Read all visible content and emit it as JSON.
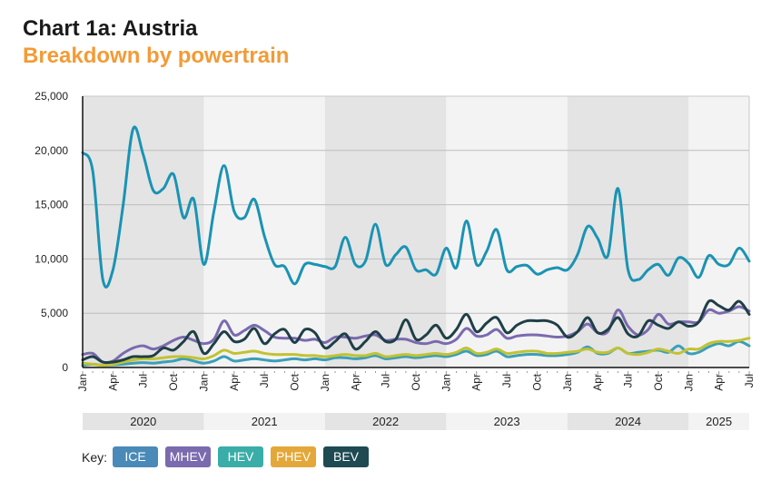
{
  "title": "Chart 1a: Austria",
  "subtitle": "Breakdown by powertrain",
  "key_label": "Key:",
  "colors": {
    "subtitle": "#f39b36",
    "band_dark": "#e4e4e4",
    "band_light": "#f3f3f3"
  },
  "chart_data": {
    "type": "line",
    "x_start": "2020-01",
    "x_end": "2025-07",
    "frequency": "monthly",
    "month_tick_labels": [
      "Jan",
      "Apr",
      "Jul",
      "Oct",
      "Jan",
      "Apr",
      "Jul",
      "Oct",
      "Jan",
      "Apr",
      "Jul",
      "Oct",
      "Jan",
      "Apr",
      "Jul",
      "Oct",
      "Jan",
      "Apr",
      "Jul",
      "Oct",
      "Jan",
      "Apr",
      "Jul"
    ],
    "year_labels": [
      "2020",
      "2021",
      "2022",
      "2023",
      "2024",
      "2025"
    ],
    "y_ticks": [
      "0",
      "5,000",
      "10,000",
      "15,000",
      "20,000",
      "25,000"
    ],
    "ylim": [
      0,
      25000
    ],
    "grid": true,
    "legend_placement": "bottom-left",
    "series": [
      {
        "name": "ICE",
        "color": "#4a8ab8",
        "line_color": "#1a93b3",
        "values": [
          19800,
          18100,
          8100,
          9000,
          14900,
          22000,
          19600,
          16300,
          16500,
          17800,
          13800,
          15500,
          9500,
          14400,
          18600,
          14400,
          13800,
          15500,
          12100,
          9500,
          9300,
          7700,
          9500,
          9500,
          9300,
          9300,
          12000,
          9500,
          9800,
          13200,
          9500,
          10400,
          11100,
          9000,
          9000,
          8600,
          11000,
          9200,
          13500,
          9500,
          10700,
          12700,
          9000,
          9300,
          9400,
          8600,
          9000,
          9200,
          9000,
          10400,
          13000,
          11900,
          10300,
          16500,
          9000,
          8100,
          9000,
          9500,
          8500,
          10100,
          9600,
          8300,
          10300,
          9500,
          9500,
          11000,
          9800
        ]
      },
      {
        "name": "MHEV",
        "color": "#7a6aae",
        "line_color": "#7a6aae",
        "values": [
          1200,
          1300,
          500,
          600,
          1300,
          1800,
          2000,
          1700,
          2000,
          2500,
          2800,
          2500,
          2200,
          2600,
          4300,
          3000,
          3400,
          3900,
          3400,
          2800,
          2700,
          2700,
          2500,
          2600,
          2300,
          2800,
          2800,
          2700,
          2900,
          3000,
          2500,
          2600,
          2600,
          2300,
          2200,
          2400,
          2200,
          2600,
          3600,
          2900,
          3000,
          3500,
          2700,
          2900,
          3000,
          3000,
          2900,
          2800,
          2900,
          3300,
          4000,
          3200,
          3300,
          5300,
          3800,
          3000,
          3500,
          4900,
          4000,
          4200,
          4200,
          4200,
          5300,
          5000,
          5200,
          5600,
          5200
        ]
      },
      {
        "name": "HEV",
        "color": "#3aada8",
        "line_color": "#3a9fb8",
        "values": [
          200,
          300,
          200,
          250,
          300,
          400,
          450,
          400,
          500,
          600,
          800,
          600,
          400,
          600,
          1000,
          600,
          700,
          800,
          700,
          600,
          700,
          800,
          700,
          800,
          700,
          900,
          900,
          800,
          900,
          1100,
          800,
          900,
          1000,
          900,
          1000,
          1100,
          1000,
          1200,
          1500,
          1100,
          1200,
          1500,
          1000,
          1100,
          1200,
          1200,
          1100,
          1100,
          1200,
          1400,
          1900,
          1300,
          1300,
          1800,
          1300,
          1400,
          1500,
          1600,
          1400,
          2000,
          1300,
          1400,
          1900,
          2200,
          2000,
          2400,
          2000
        ]
      },
      {
        "name": "PHEV",
        "color": "#e4a83a",
        "line_color": "#c2c233",
        "values": [
          400,
          300,
          200,
          300,
          500,
          700,
          800,
          800,
          900,
          1000,
          1000,
          900,
          800,
          1100,
          1600,
          1300,
          1400,
          1500,
          1300,
          1200,
          1200,
          1200,
          1100,
          1100,
          1000,
          1100,
          1200,
          1100,
          1100,
          1300,
          1000,
          1100,
          1200,
          1100,
          1200,
          1300,
          1200,
          1400,
          1800,
          1300,
          1400,
          1700,
          1300,
          1400,
          1500,
          1500,
          1300,
          1300,
          1400,
          1500,
          1700,
          1400,
          1400,
          1800,
          1300,
          1200,
          1400,
          1700,
          1500,
          1300,
          1700,
          1700,
          2200,
          2400,
          2400,
          2500,
          2700
        ]
      },
      {
        "name": "BEV",
        "color": "#1f4a52",
        "line_color": "#1f3f47",
        "values": [
          700,
          1000,
          500,
          500,
          700,
          1000,
          1000,
          1100,
          1800,
          1600,
          2400,
          3300,
          1300,
          2200,
          3300,
          2400,
          2600,
          3600,
          2200,
          3100,
          3500,
          2300,
          3500,
          3200,
          1800,
          2400,
          3100,
          1700,
          2400,
          3300,
          2400,
          2600,
          4400,
          2600,
          3000,
          3900,
          2700,
          3500,
          4900,
          3300,
          4100,
          4600,
          3200,
          3900,
          4300,
          4300,
          4300,
          3900,
          2800,
          3300,
          4600,
          3200,
          3500,
          4600,
          3100,
          2900,
          4300,
          3900,
          3600,
          4200,
          3800,
          4200,
          6100,
          5700,
          5300,
          6100,
          4900
        ]
      }
    ]
  }
}
